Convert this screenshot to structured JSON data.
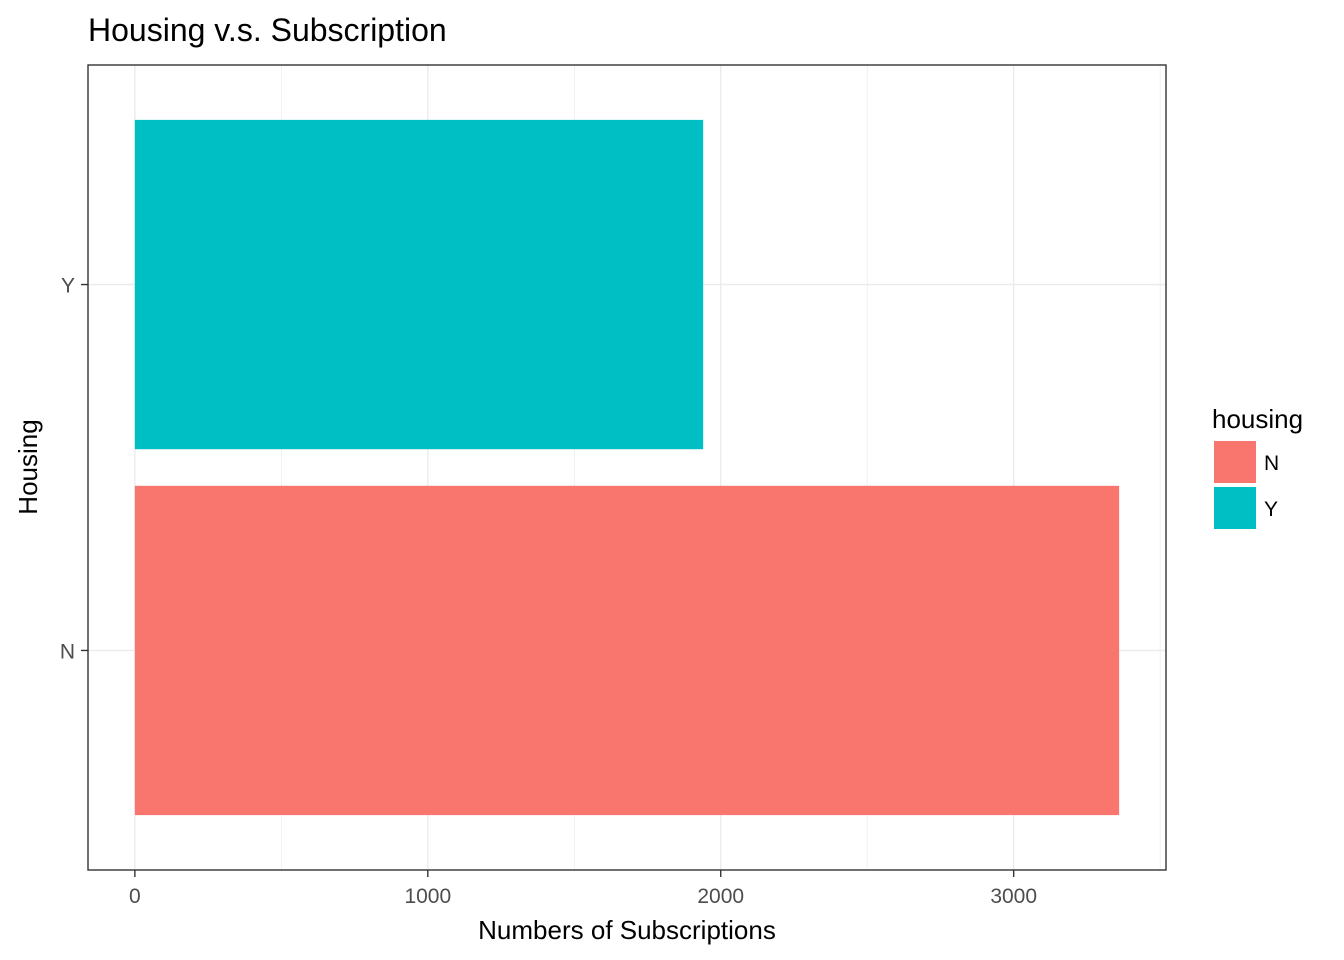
{
  "chart_data": {
    "type": "bar",
    "orientation": "horizontal",
    "title": "Housing v.s. Subscription",
    "xlabel": "Numbers of Subscriptions",
    "ylabel": "Housing",
    "categories": [
      "N",
      "Y"
    ],
    "values": [
      3360,
      1940
    ],
    "colors": [
      "#F8766D",
      "#00BFC4"
    ],
    "xlim": [
      -160,
      3520
    ],
    "x_ticks": [
      0,
      1000,
      2000,
      3000
    ],
    "x_tick_labels": [
      "0",
      "1000",
      "2000",
      "3000"
    ],
    "grid": true,
    "legend": {
      "title": "housing",
      "position": "right",
      "entries": [
        {
          "label": "N",
          "color": "#F8766D"
        },
        {
          "label": "Y",
          "color": "#00BFC4"
        }
      ]
    }
  }
}
